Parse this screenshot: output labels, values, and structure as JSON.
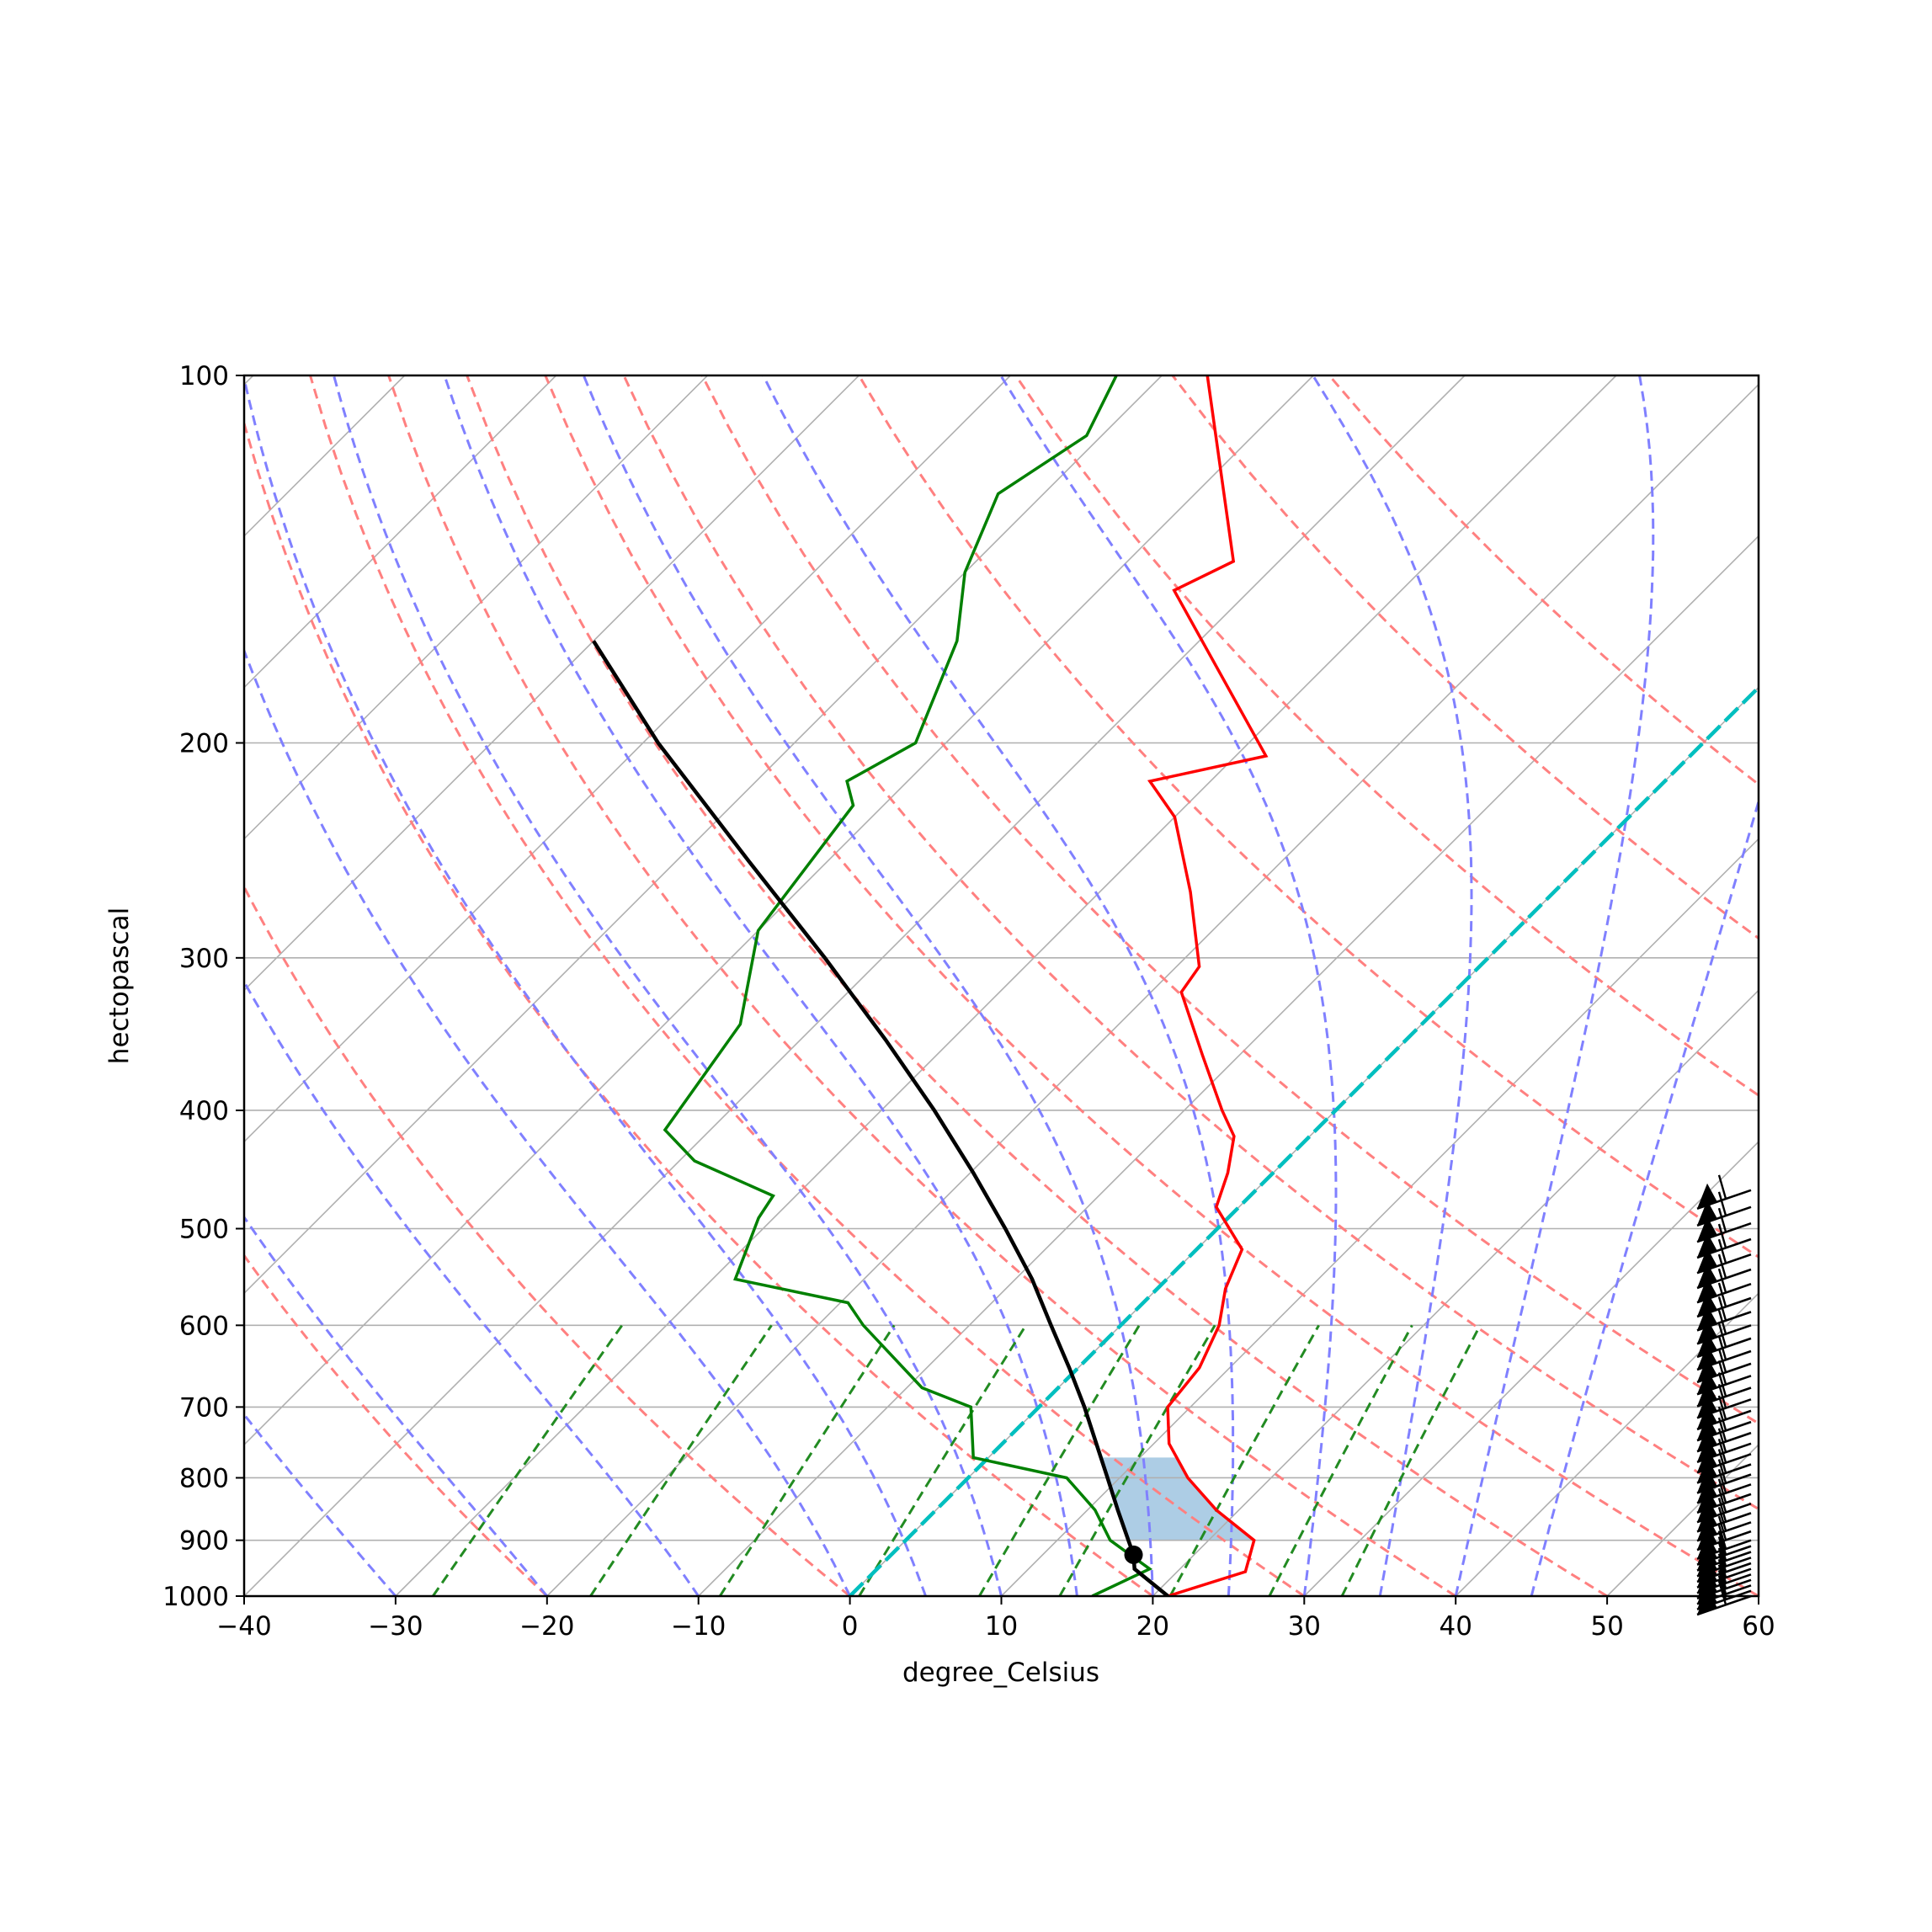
{
  "chart_data": {
    "type": "line",
    "title": "",
    "xlabel": "degree_Celsius",
    "ylabel": "hectopascal",
    "x_range": [
      -40,
      60
    ],
    "y_range_hpa": [
      1000,
      100
    ],
    "y_scale": "log",
    "skew": "skew-T",
    "x_ticks": [
      -40,
      -30,
      -20,
      -10,
      0,
      10,
      20,
      30,
      40,
      50,
      60
    ],
    "y_ticks": [
      100,
      200,
      300,
      400,
      500,
      600,
      700,
      800,
      900,
      1000
    ],
    "grid": true,
    "colors": {
      "temperature": "#ff0000",
      "dewpoint": "#008000",
      "parcel": "#000000",
      "dry_adiabats": "#ff8080",
      "moist_adiabats": "#8080ff",
      "mixing_ratio": "#228b22",
      "zero_isotherm": "#00bfbf",
      "cape_fill": "#f4a9a9",
      "cin_fill": "#9fc4e0",
      "isotherm": "#b0b0b0"
    },
    "series": [
      {
        "key": "temperature",
        "points": [
          [
            1000,
            21.0
          ],
          [
            955,
            24.5
          ],
          [
            900,
            23.0
          ],
          [
            850,
            18.5
          ],
          [
            800,
            14.5
          ],
          [
            750,
            11.0
          ],
          [
            700,
            8.5
          ],
          [
            650,
            8.0
          ],
          [
            600,
            6.5
          ],
          [
            560,
            4.5
          ],
          [
            520,
            3.0
          ],
          [
            480,
            -1.5
          ],
          [
            450,
            -3.0
          ],
          [
            420,
            -5.0
          ],
          [
            400,
            -7.5
          ],
          [
            360,
            -12.5
          ],
          [
            320,
            -18.0
          ],
          [
            305,
            -18.5
          ],
          [
            265,
            -24.0
          ],
          [
            230,
            -30.0
          ],
          [
            215,
            -34.0
          ],
          [
            205,
            -28.0
          ],
          [
            150,
            -45.0
          ],
          [
            142,
            -43.0
          ],
          [
            100,
            -57.0
          ]
        ]
      },
      {
        "key": "dewpoint",
        "points": [
          [
            1000,
            16.0
          ],
          [
            950,
            18.0
          ],
          [
            900,
            13.5
          ],
          [
            850,
            10.5
          ],
          [
            800,
            6.5
          ],
          [
            770,
            -1.0
          ],
          [
            700,
            -4.5
          ],
          [
            675,
            -9.0
          ],
          [
            600,
            -17.0
          ],
          [
            575,
            -19.5
          ],
          [
            550,
            -28.5
          ],
          [
            490,
            -31.0
          ],
          [
            470,
            -31.5
          ],
          [
            440,
            -39.0
          ],
          [
            415,
            -43.0
          ],
          [
            340,
            -45.0
          ],
          [
            285,
            -50.0
          ],
          [
            225,
            -52.0
          ],
          [
            215,
            -54.0
          ],
          [
            200,
            -52.0
          ],
          [
            165,
            -56.0
          ],
          [
            145,
            -60.0
          ],
          [
            125,
            -63.0
          ],
          [
            112,
            -61.0
          ],
          [
            100,
            -63.0
          ]
        ]
      },
      {
        "key": "parcel",
        "points": [
          [
            1000,
            21.0
          ],
          [
            950,
            17.0
          ],
          [
            925,
            16.0
          ],
          [
            900,
            14.7
          ],
          [
            850,
            12.0
          ],
          [
            800,
            9.2
          ],
          [
            750,
            6.2
          ],
          [
            700,
            3.0
          ],
          [
            650,
            -0.6
          ],
          [
            600,
            -4.6
          ],
          [
            550,
            -8.9
          ],
          [
            500,
            -14.0
          ],
          [
            450,
            -19.8
          ],
          [
            400,
            -26.5
          ],
          [
            350,
            -34.4
          ],
          [
            300,
            -43.8
          ],
          [
            250,
            -55.2
          ],
          [
            200,
            -69.0
          ],
          [
            165,
            -80.0
          ]
        ]
      }
    ],
    "lcl": {
      "pressure_hpa": 925,
      "temperature_c": 16.0
    },
    "dry_adiabats_theta_k": [
      233.15,
      253.15,
      273.15,
      293.15,
      303.15,
      313.15,
      323.15,
      333.15,
      343.15,
      353.15,
      373.15,
      393.15,
      413.15,
      433.15
    ],
    "moist_adiabats_start_c": [
      -30,
      -20,
      -10,
      0,
      5,
      10,
      15,
      20,
      25,
      30,
      35,
      40,
      45
    ],
    "mixing_ratios_gkg": [
      0.4,
      1,
      2,
      4,
      7,
      10,
      16,
      24,
      32
    ],
    "wind_barb_pressures_hpa": [
      1000,
      990,
      980,
      970,
      960,
      950,
      940,
      930,
      920,
      910,
      900,
      885,
      870,
      855,
      840,
      825,
      810,
      795,
      780,
      765,
      750,
      735,
      720,
      705,
      690,
      675,
      660,
      645,
      630,
      615,
      600,
      585,
      570,
      555,
      540,
      525,
      510,
      495,
      480,
      465
    ]
  }
}
